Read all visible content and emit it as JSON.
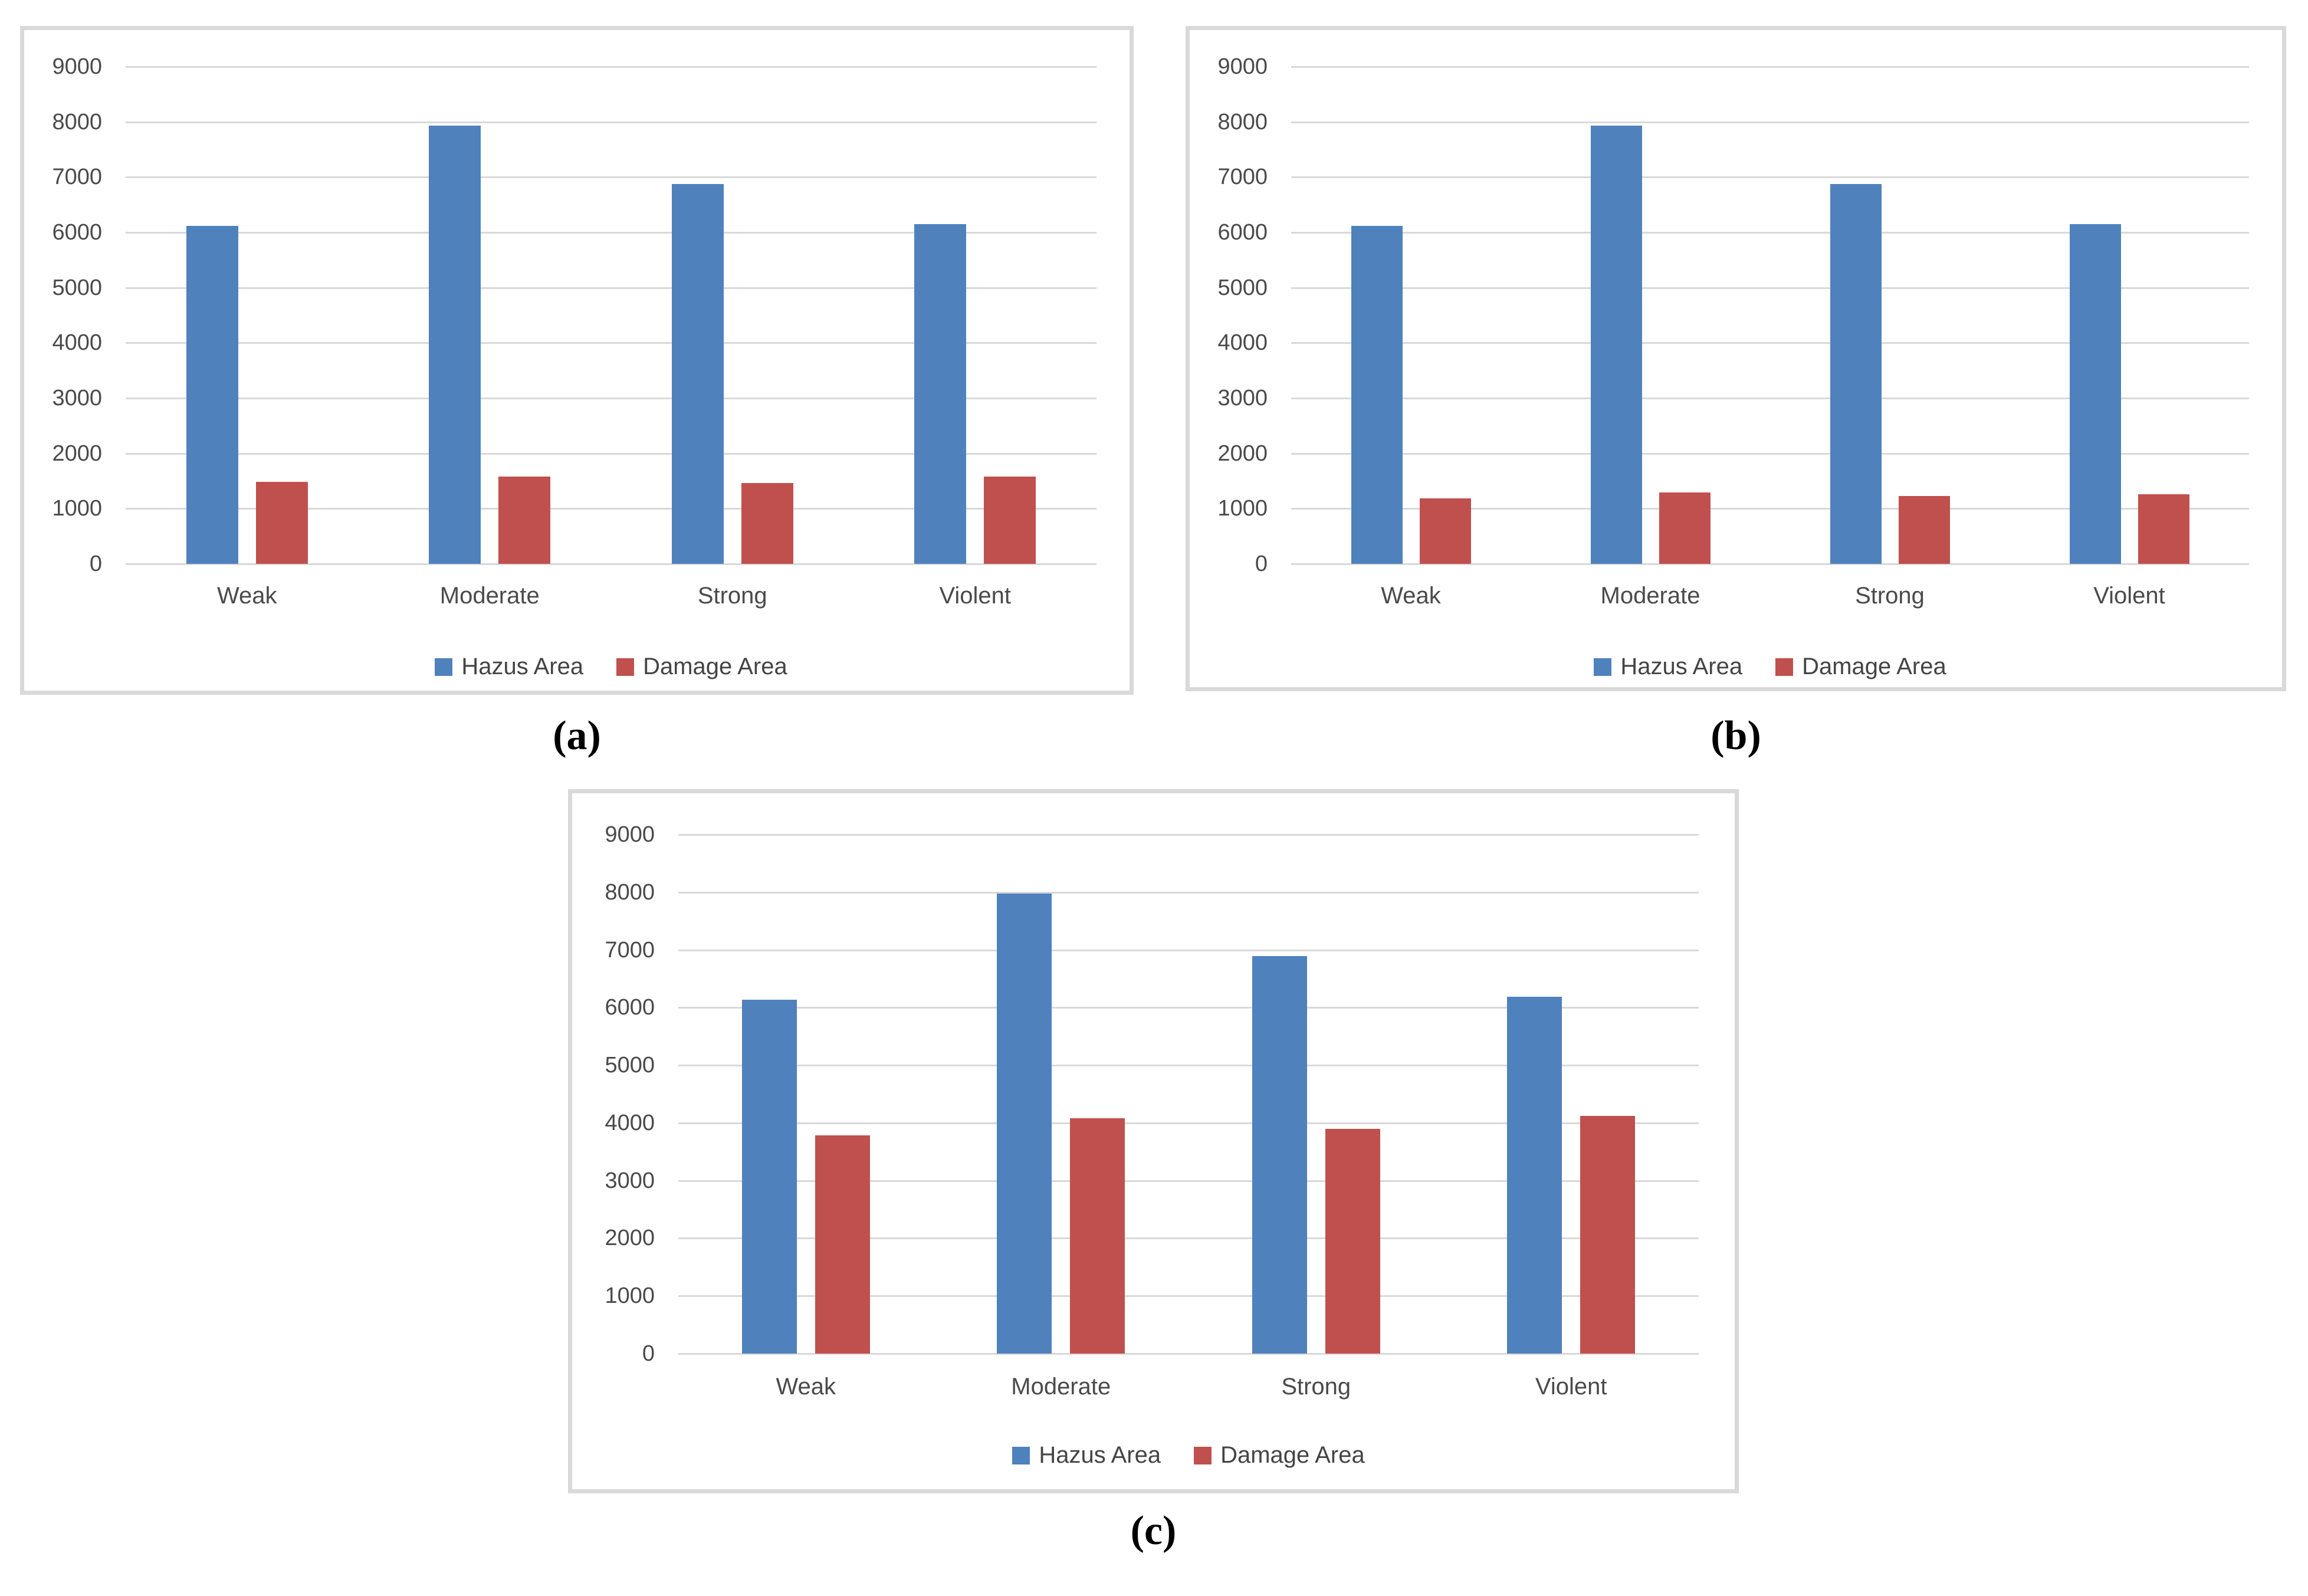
{
  "figure": {
    "captions": {
      "a": "(a)",
      "b": "(b)",
      "c": "(c)"
    }
  },
  "colors": {
    "hazus": "#4F81BD",
    "damage": "#C0504D",
    "gridline": "#D9D9D9",
    "panel_border": "#D9D9D9",
    "axis_text": "#4A4A4A"
  },
  "chart_data": [
    {
      "id": "a",
      "type": "bar",
      "title": "",
      "xlabel": "",
      "ylabel": "",
      "categories": [
        "Weak",
        "Moderate",
        "Strong",
        "Violent"
      ],
      "series": [
        {
          "name": "Hazus Area",
          "color_key": "hazus",
          "values": [
            6120,
            7930,
            6880,
            6150
          ]
        },
        {
          "name": "Damage Area",
          "color_key": "damage",
          "values": [
            1480,
            1580,
            1460,
            1580
          ]
        }
      ],
      "ylim": [
        0,
        9000
      ],
      "ytick_step": 1000,
      "grid": true,
      "legend_position": "bottom"
    },
    {
      "id": "b",
      "type": "bar",
      "title": "",
      "xlabel": "",
      "ylabel": "",
      "categories": [
        "Weak",
        "Moderate",
        "Strong",
        "Violent"
      ],
      "series": [
        {
          "name": "Hazus Area",
          "color_key": "hazus",
          "values": [
            6120,
            7930,
            6880,
            6150
          ]
        },
        {
          "name": "Damage Area",
          "color_key": "damage",
          "values": [
            1180,
            1290,
            1230,
            1260
          ]
        }
      ],
      "ylim": [
        0,
        9000
      ],
      "ytick_step": 1000,
      "grid": true,
      "legend_position": "bottom"
    },
    {
      "id": "c",
      "type": "bar",
      "title": "",
      "xlabel": "",
      "ylabel": "",
      "categories": [
        "Weak",
        "Moderate",
        "Strong",
        "Violent"
      ],
      "series": [
        {
          "name": "Hazus Area",
          "color_key": "hazus",
          "values": [
            6140,
            7980,
            6890,
            6190
          ]
        },
        {
          "name": "Damage Area",
          "color_key": "damage",
          "values": [
            3780,
            4080,
            3900,
            4120
          ]
        }
      ],
      "ylim": [
        0,
        9000
      ],
      "ytick_step": 1000,
      "grid": true,
      "legend_position": "bottom"
    }
  ]
}
